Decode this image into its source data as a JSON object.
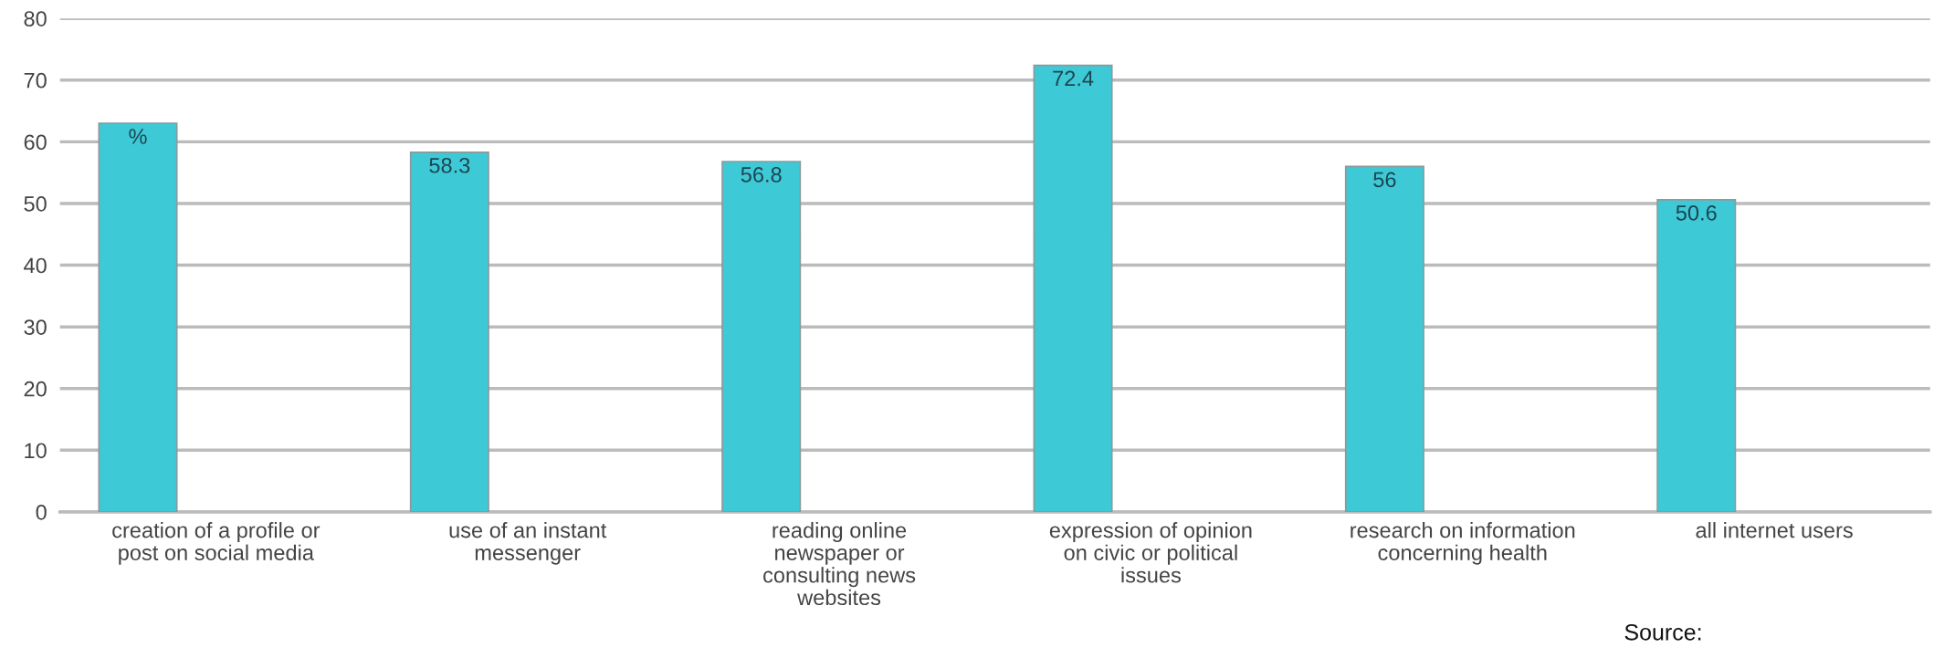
{
  "chart_data": {
    "type": "bar",
    "categories": [
      "creation of a profile or\npost on social media",
      "use of an instant\nmessenger",
      "reading online\nnewspaper or\nconsulting news\nwebsites",
      "expression of opinion\non civic or political\nissues",
      "research on information\nconcerning health",
      "all internet users"
    ],
    "values": [
      63,
      58.3,
      56.8,
      72.4,
      56,
      50.6
    ],
    "value_labels": [
      "%",
      "58.3",
      "56.8",
      "72.4",
      "56",
      "50.6"
    ],
    "color": "#3ec9d6",
    "ylim": [
      0,
      80
    ],
    "yticks": [
      0,
      10,
      20,
      30,
      40,
      50,
      60,
      70,
      80
    ],
    "grid": "y",
    "legend": false,
    "annotations": [
      "Source:"
    ]
  }
}
